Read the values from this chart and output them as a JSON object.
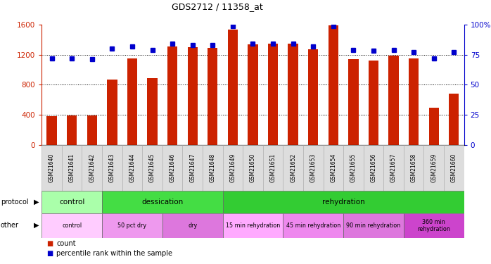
{
  "title": "GDS2712 / 11358_at",
  "samples": [
    "GSM21640",
    "GSM21641",
    "GSM21642",
    "GSM21643",
    "GSM21644",
    "GSM21645",
    "GSM21646",
    "GSM21647",
    "GSM21648",
    "GSM21649",
    "GSM21650",
    "GSM21651",
    "GSM21652",
    "GSM21653",
    "GSM21654",
    "GSM21655",
    "GSM21656",
    "GSM21657",
    "GSM21658",
    "GSM21659",
    "GSM21660"
  ],
  "counts": [
    380,
    390,
    390,
    870,
    1150,
    890,
    1310,
    1300,
    1290,
    1530,
    1340,
    1350,
    1350,
    1270,
    1590,
    1140,
    1120,
    1190,
    1150,
    490,
    680
  ],
  "percentiles": [
    72,
    72,
    71,
    80,
    82,
    79,
    84,
    83,
    83,
    99,
    84,
    84,
    84,
    82,
    99,
    79,
    78,
    79,
    77,
    72,
    77
  ],
  "bar_color": "#cc2200",
  "dot_color": "#0000cc",
  "ylim_left": [
    0,
    1600
  ],
  "ylim_right": [
    0,
    100
  ],
  "yticks_left": [
    0,
    400,
    800,
    1200,
    1600
  ],
  "yticks_right": [
    0,
    25,
    50,
    75,
    100
  ],
  "ytick_labels_right": [
    "0",
    "25",
    "50",
    "75",
    "100%"
  ],
  "grid_dotted_at": [
    400,
    800,
    1200
  ],
  "protocol_groups": [
    {
      "label": "control",
      "start": 0,
      "end": 3,
      "color": "#aaffaa"
    },
    {
      "label": "dessication",
      "start": 3,
      "end": 9,
      "color": "#44dd44"
    },
    {
      "label": "rehydration",
      "start": 9,
      "end": 21,
      "color": "#33cc33"
    }
  ],
  "other_groups": [
    {
      "label": "control",
      "start": 0,
      "end": 3,
      "color": "#ffccff"
    },
    {
      "label": "50 pct dry",
      "start": 3,
      "end": 6,
      "color": "#ee99ee"
    },
    {
      "label": "dry",
      "start": 6,
      "end": 9,
      "color": "#dd77dd"
    },
    {
      "label": "15 min rehydration",
      "start": 9,
      "end": 12,
      "color": "#ffaaff"
    },
    {
      "label": "45 min rehydration",
      "start": 12,
      "end": 15,
      "color": "#ee88ee"
    },
    {
      "label": "90 min rehydration",
      "start": 15,
      "end": 18,
      "color": "#dd77dd"
    },
    {
      "label": "360 min\nrehydration",
      "start": 18,
      "end": 21,
      "color": "#cc44cc"
    }
  ]
}
